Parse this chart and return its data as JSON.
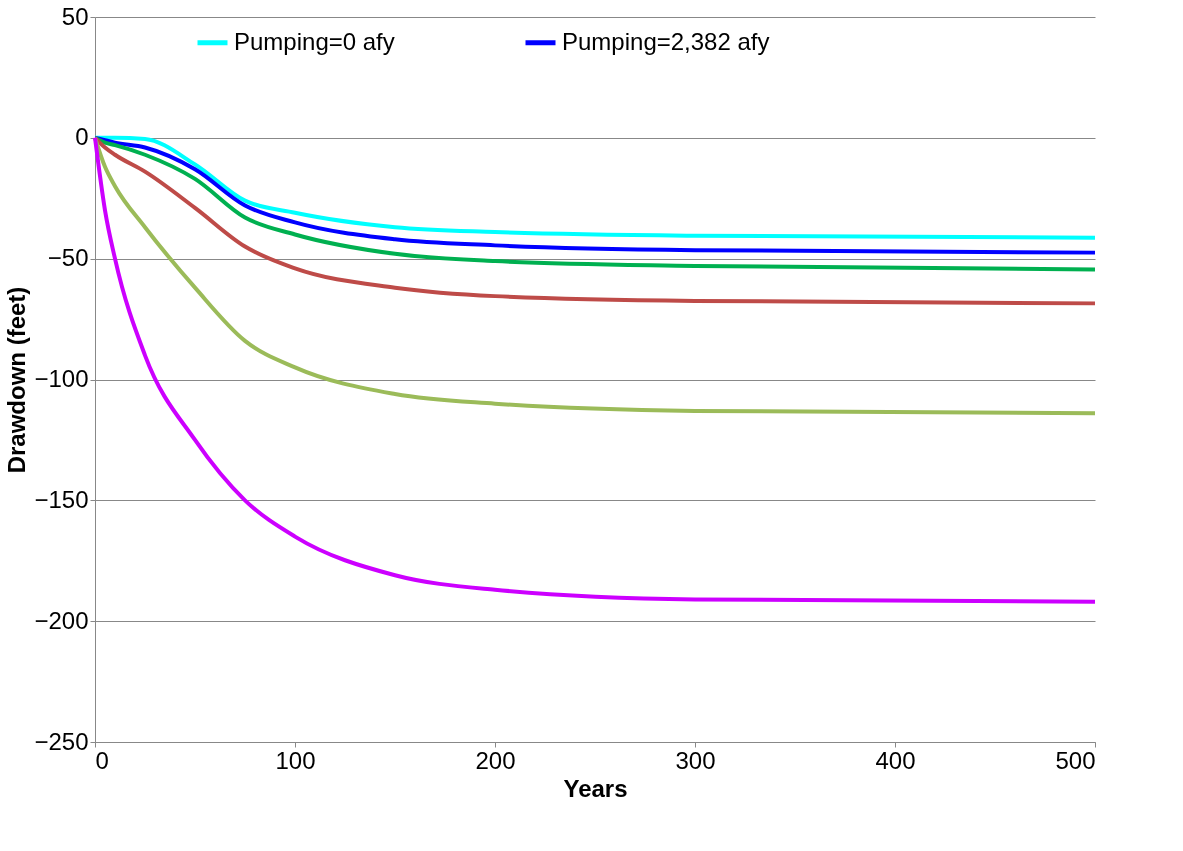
{
  "chart_data": {
    "type": "line",
    "xlabel": "Years",
    "ylabel": "Drawdown (feet)",
    "x": [
      0,
      5,
      10,
      25,
      50,
      75,
      100,
      150,
      200,
      300,
      500
    ],
    "series": [
      {
        "name": "Pumping=0 afy",
        "color": "#00ffff",
        "values": [
          0,
          0,
          0,
          -0.5,
          -11,
          -26,
          -31,
          -37,
          -39,
          -40.5,
          -41.3
        ]
      },
      {
        "name": "Pumping=2,382 afy",
        "color": "#0000ff",
        "values": [
          0,
          -1,
          -2,
          -4,
          -13,
          -28,
          -35,
          -42,
          -44.5,
          -46.5,
          -47.5
        ]
      },
      {
        "color": "#00b050",
        "values": [
          0,
          -2,
          -3,
          -7,
          -17,
          -33,
          -40,
          -48,
          -51,
          -53,
          -54.5
        ]
      },
      {
        "color": "#be4b48",
        "values": [
          0,
          -4,
          -7,
          -14,
          -29,
          -45,
          -54,
          -62,
          -65.5,
          -67.5,
          -68.5
        ]
      },
      {
        "color": "#9bbb59",
        "values": [
          0,
          -12,
          -20,
          -37,
          -62,
          -84,
          -95,
          -106,
          -110,
          -113,
          -114
        ]
      },
      {
        "color": "#cc00ff",
        "values": [
          0,
          -30,
          -50,
          -90,
          -125,
          -150,
          -165,
          -181,
          -187,
          -191,
          -192
        ]
      }
    ],
    "xlim": [
      0,
      500
    ],
    "xticks": [
      0,
      100,
      200,
      300,
      400,
      500
    ],
    "ylim": [
      -250,
      50
    ],
    "yticks": [
      -250,
      -200,
      -150,
      -100,
      -50,
      0,
      50
    ],
    "grid": "y",
    "legend": "top",
    "marker": "none",
    "line_style": "solid"
  }
}
